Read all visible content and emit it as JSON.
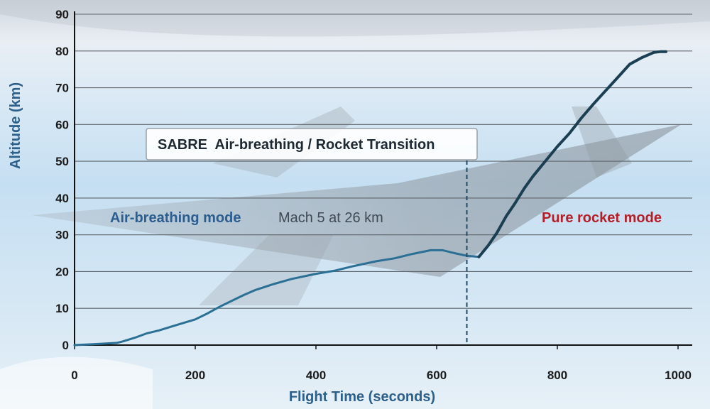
{
  "chart_data": {
    "type": "line",
    "title": "",
    "xlabel": "Flight Time (seconds)",
    "ylabel": "Altitude (km)",
    "xlim": [
      0,
      1000
    ],
    "ylim": [
      0,
      90
    ],
    "xticks": [
      0,
      200,
      400,
      600,
      800,
      1000
    ],
    "yticks": [
      0,
      10,
      20,
      30,
      40,
      50,
      60,
      70,
      80,
      90
    ],
    "grid": "horizontal",
    "series": [
      {
        "segment": "air-breathing",
        "color": "#2b6f95",
        "points": [
          [
            0,
            0
          ],
          [
            25,
            0.2
          ],
          [
            50,
            0.4
          ],
          [
            70,
            0.6
          ],
          [
            80,
            1
          ],
          [
            100,
            2
          ],
          [
            120,
            3.2
          ],
          [
            140,
            4
          ],
          [
            160,
            5
          ],
          [
            180,
            6
          ],
          [
            200,
            7
          ],
          [
            220,
            8.6
          ],
          [
            240,
            10.4
          ],
          [
            260,
            12
          ],
          [
            280,
            13.6
          ],
          [
            300,
            15
          ],
          [
            330,
            16.6
          ],
          [
            360,
            18
          ],
          [
            400,
            19.4
          ],
          [
            430,
            20.2
          ],
          [
            460,
            21.4
          ],
          [
            500,
            22.8
          ],
          [
            530,
            23.6
          ],
          [
            560,
            24.8
          ],
          [
            590,
            25.8
          ],
          [
            610,
            25.8
          ],
          [
            630,
            25
          ],
          [
            650,
            24.3
          ],
          [
            670,
            24
          ]
        ]
      },
      {
        "segment": "rocket",
        "color": "#1b3e52",
        "points": [
          [
            670,
            24
          ],
          [
            685,
            27
          ],
          [
            700,
            30.6
          ],
          [
            715,
            35
          ],
          [
            730,
            38.6
          ],
          [
            745,
            42.6
          ],
          [
            760,
            46
          ],
          [
            780,
            50
          ],
          [
            800,
            54
          ],
          [
            820,
            57.6
          ],
          [
            840,
            61.8
          ],
          [
            860,
            65.6
          ],
          [
            880,
            69.2
          ],
          [
            900,
            72.8
          ],
          [
            920,
            76.4
          ],
          [
            940,
            78.2
          ],
          [
            960,
            79.6
          ],
          [
            970,
            79.8
          ],
          [
            980,
            79.8
          ]
        ]
      }
    ],
    "annotations": {
      "transition_box": "SABRE  Air-breathing / Rocket Transition",
      "transition_x": 650,
      "air_mode": "Air-breathing mode",
      "air_mode_note": "Mach 5 at 26 km",
      "rocket_mode": "Pure rocket mode"
    },
    "colors": {
      "air_mode_text": "#2c5d8f",
      "note_text": "#3f4a55",
      "rocket_mode_text": "#b3202a",
      "axis_title": "#2c5f8a"
    }
  }
}
